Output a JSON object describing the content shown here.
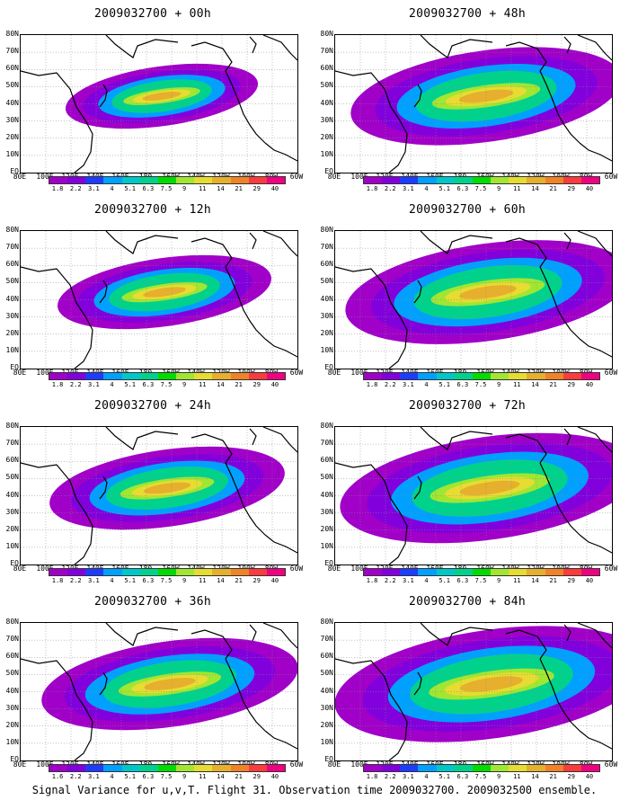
{
  "panels": [
    {
      "title": "2009032700 + 00h",
      "spread": 0.35
    },
    {
      "title": "2009032700 + 12h",
      "spread": 0.5
    },
    {
      "title": "2009032700 + 24h",
      "spread": 0.65
    },
    {
      "title": "2009032700 + 36h",
      "spread": 0.8
    },
    {
      "title": "2009032700 + 48h",
      "spread": 0.9
    },
    {
      "title": "2009032700 + 60h",
      "spread": 1.0
    },
    {
      "title": "2009032700 + 72h",
      "spread": 1.1
    },
    {
      "title": "2009032700 + 84h",
      "spread": 1.2
    }
  ],
  "lat_labels": [
    "80N",
    "70N",
    "60N",
    "50N",
    "40N",
    "30N",
    "20N",
    "10N",
    "EQ"
  ],
  "lon_labels": [
    "80E",
    "100E",
    "120E",
    "140E",
    "160E",
    "180",
    "160W",
    "140W",
    "120W",
    "100W",
    "80W",
    "60W"
  ],
  "colorbar": {
    "labels": [
      "1.8",
      "2.2",
      "3.1",
      "4",
      "5.1",
      "6.3",
      "7.5",
      "9",
      "11",
      "14",
      "21",
      "29",
      "40"
    ],
    "labels_36h": [
      "1.6",
      "2.2",
      "3.1",
      "4",
      "5.1",
      "6.3",
      "7.5",
      "9",
      "11",
      "14",
      "21",
      "29",
      "40"
    ],
    "colors": [
      "#a000c8",
      "#8200dc",
      "#1e3cff",
      "#00a0ff",
      "#00c8c8",
      "#00d28c",
      "#00dc00",
      "#a0e632",
      "#e6dc32",
      "#e6af2d",
      "#f08228",
      "#fa3c3c",
      "#f00082"
    ]
  },
  "footer": "Signal Variance for u,v,T. Flight 31. Observation time 2009032700. 2009032500 ensemble."
}
